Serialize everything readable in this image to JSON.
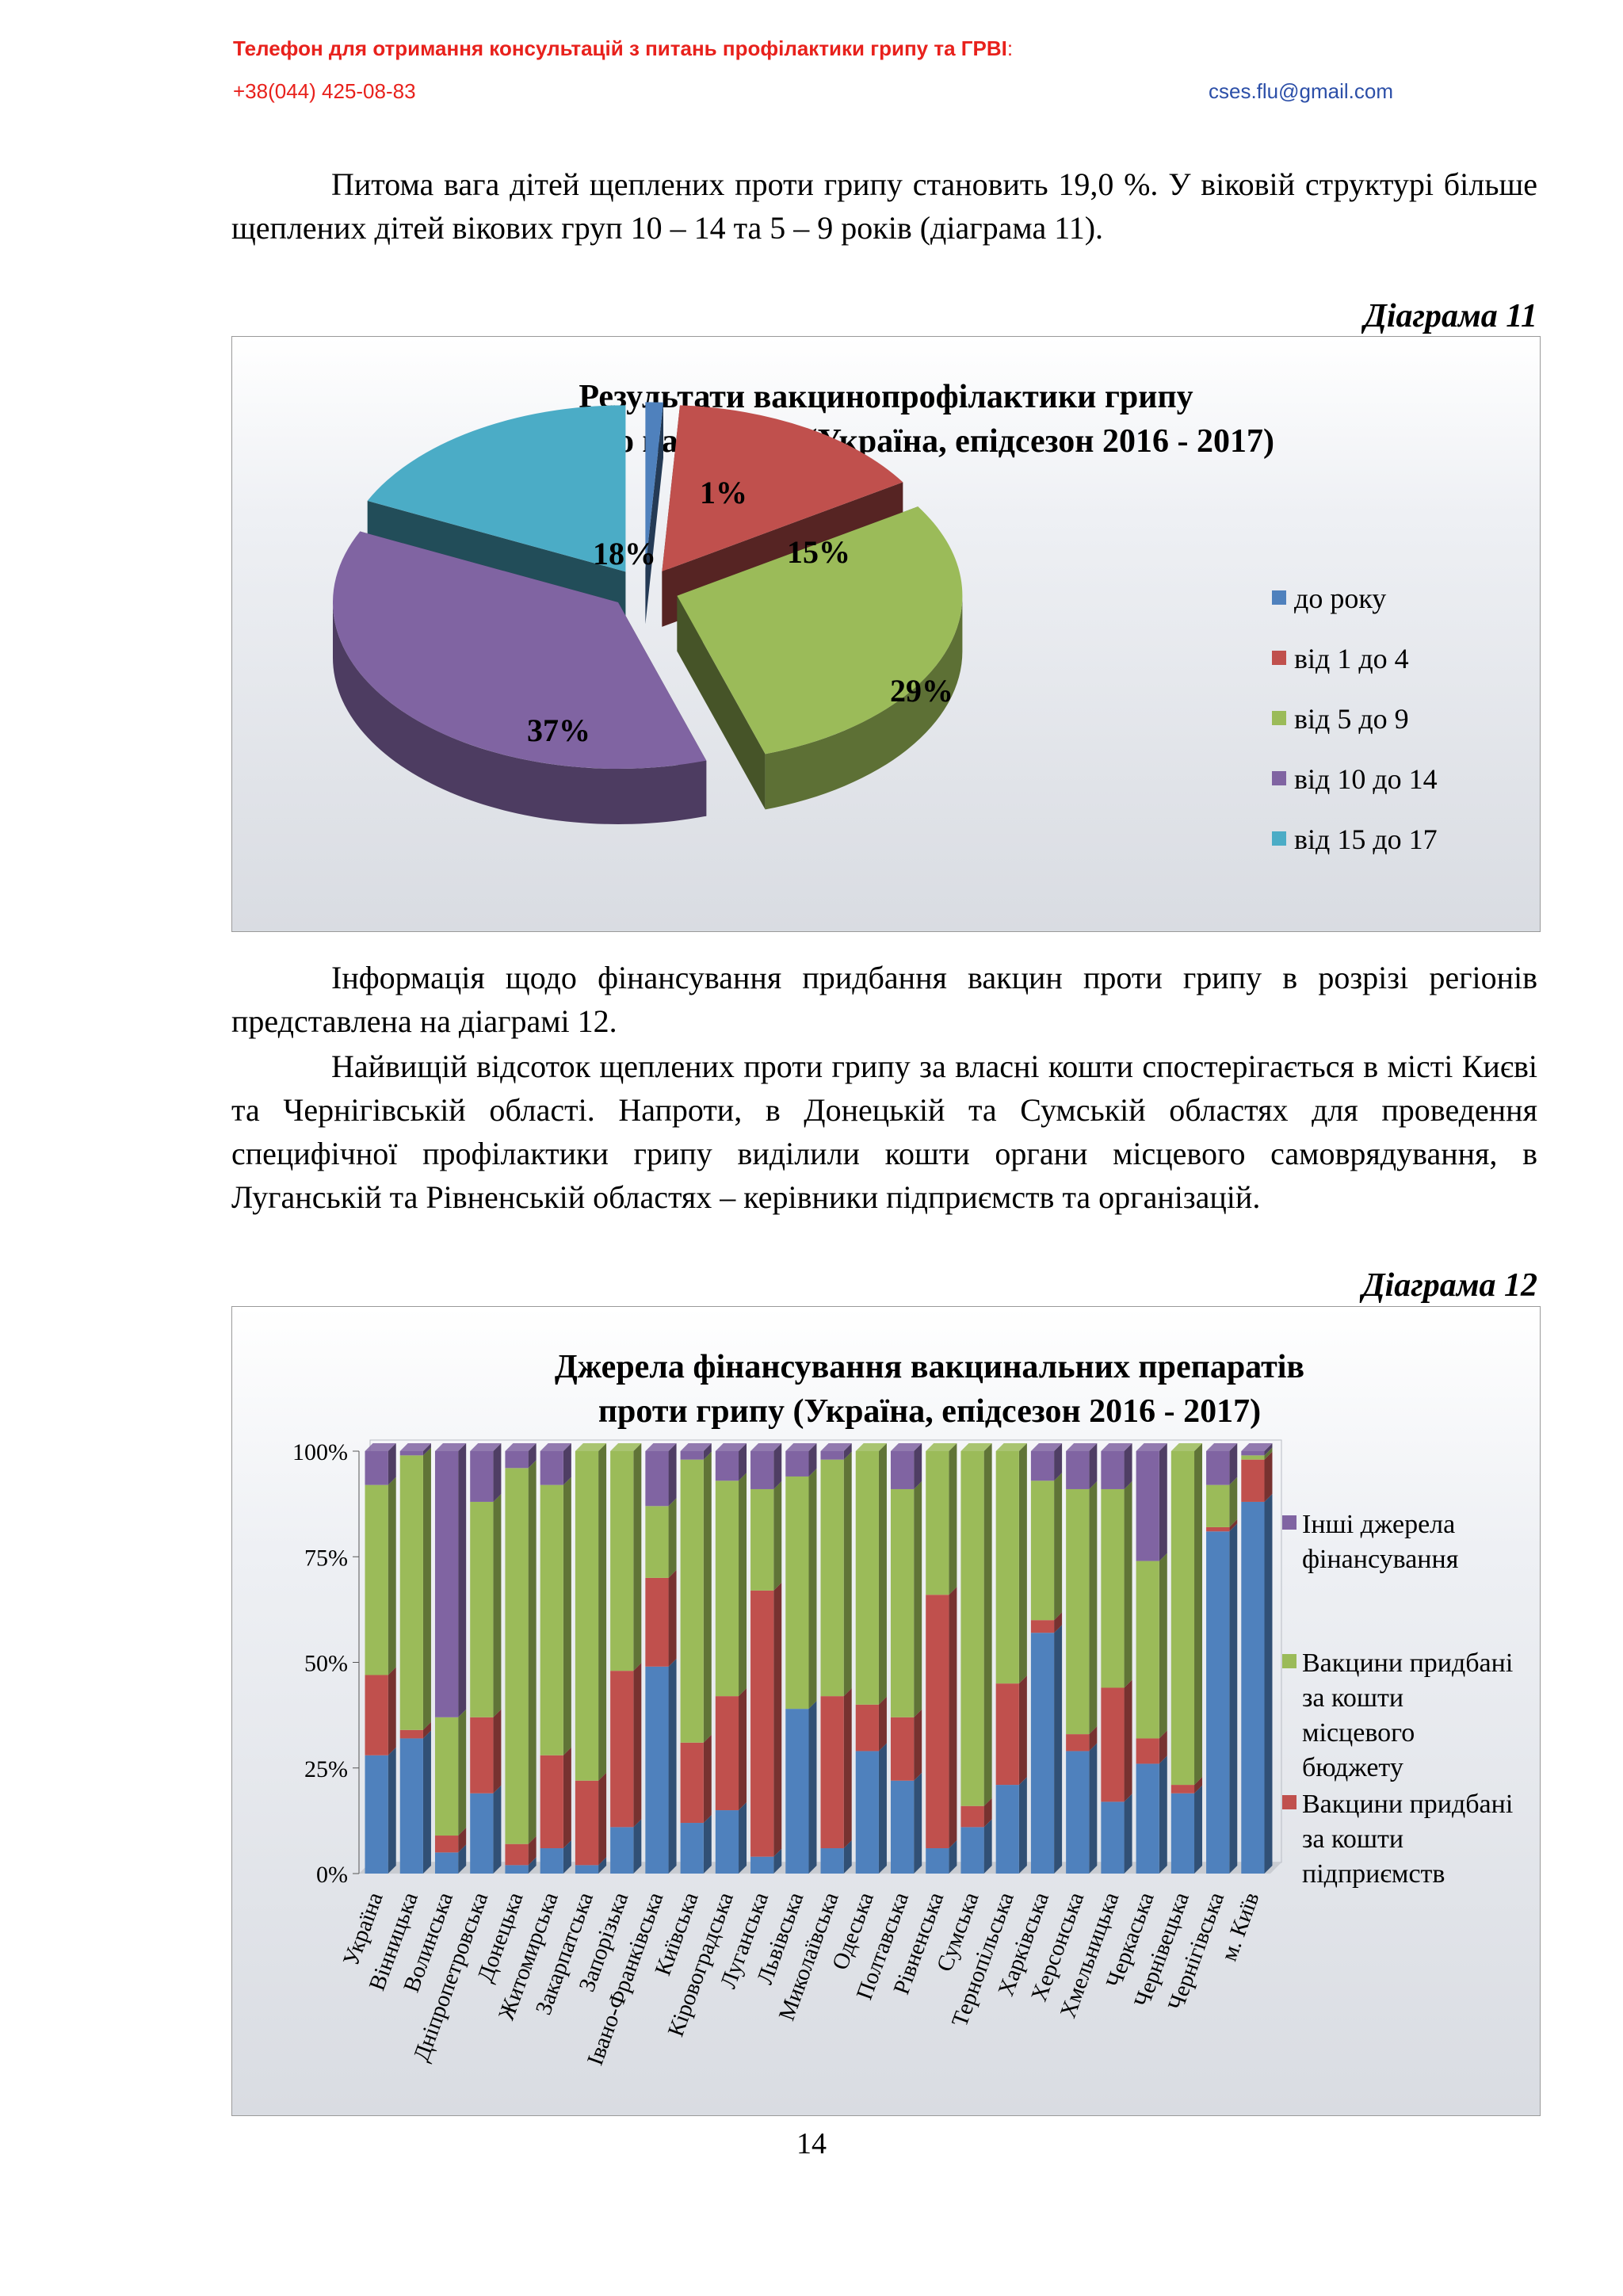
{
  "header": {
    "title": "Телефон для отримання консультацій з питань профілактики грипу та ГРВІ",
    "colon": ":",
    "phone": "+38(044) 425-08-83",
    "email": "cses.flu@gmail.com"
  },
  "text": {
    "para1": "Питома вага дітей щеплених проти грипу становить 19,0 %. У віковій структурі більше щеплених дітей вікових груп 10 – 14 та 5 – 9 років (діаграма 11).",
    "diagram11_label": "Діаграма 11",
    "para2": "Інформація щодо фінансування придбання вакцин проти грипу в розрізі регіонів представлена на діаграмі 12.",
    "para3": "Найвищій відсоток щеплених проти грипу за власні кошти спостерігається в місті Києві та Чернігівській області. Напроти, в Донецькій та Сумській областях для проведення специфічної профілактики грипу виділили кошти органи місцевого самоврядування, в Луганській та Рівненській областях – керівники підприємств та організацій.",
    "diagram12_label": "Діаграма 12",
    "page_number": "14"
  },
  "chart_data": [
    {
      "type": "pie",
      "title": "Результати вакцинопрофілактики грипу дитячого населення (Україна, епідсезон 2016 - 2017)",
      "title_lines": [
        "Результати вакцинопрофілактики грипу",
        "дитячого населення (Україна, епідсезон 2016 - 2017)"
      ],
      "categories": [
        "до року",
        "від 1 до 4",
        "від 5 до 9",
        "від 10 до 14",
        "від 15 до 17"
      ],
      "values": [
        1,
        15,
        29,
        37,
        18
      ],
      "labels": [
        "1%",
        "15%",
        "29%",
        "37%",
        "18%"
      ],
      "colors": [
        "#4f81bd",
        "#c0504d",
        "#9bbb59",
        "#8064a2",
        "#4bacc6"
      ],
      "exploded": true,
      "three_d": true,
      "legend_position": "right"
    },
    {
      "type": "bar",
      "stacked": "percent",
      "title": "Джерела фінансування вакцинальних препаратів проти грипу (Україна, епідсезон  2016 - 2017)",
      "title_lines": [
        "Джерела фінансування вакцинальних препаратів",
        "проти грипу (Україна, епідсезон  2016 - 2017)"
      ],
      "categories": [
        "Україна",
        "Вінницька",
        "Волинська",
        "Дніпропетровська",
        "Донецька",
        "Житомирська",
        "Закарпатська",
        "Запорізька",
        "Івано-Франківська",
        "Київська",
        "Кіровоградська",
        "Луганська",
        "Львівська",
        "Миколаївська",
        "Одеська",
        "Полтавська",
        "Рівненська",
        "Сумська",
        "Тернопільська",
        "Харківська",
        "Херсонська",
        "Хмельницька",
        "Черкаська",
        "Чернівецька",
        "Чернігівська",
        "м. Київ"
      ],
      "y_ticks": [
        "0%",
        "25%",
        "50%",
        "75%",
        "100%"
      ],
      "ylim": [
        0,
        100
      ],
      "series": [
        {
          "name": "",
          "color": "#4f81bd",
          "values": [
            28,
            32,
            5,
            19,
            2,
            6,
            2,
            11,
            49,
            12,
            15,
            4,
            39,
            6,
            29,
            22,
            6,
            11,
            21,
            57,
            29,
            17,
            26,
            19,
            81,
            88
          ]
        },
        {
          "name": "Вакцини придбані за кошти підприємств",
          "color": "#c0504d",
          "values": [
            19,
            2,
            4,
            18,
            5,
            22,
            20,
            37,
            21,
            19,
            27,
            63,
            0,
            36,
            11,
            15,
            60,
            5,
            24,
            3,
            4,
            27,
            6,
            2,
            1,
            10
          ]
        },
        {
          "name": "Вакцини придбані за кошти місцевого бюджету",
          "color": "#9bbb59",
          "values": [
            45,
            65,
            28,
            51,
            89,
            64,
            78,
            52,
            17,
            67,
            51,
            24,
            55,
            56,
            60,
            54,
            34,
            84,
            55,
            33,
            58,
            47,
            42,
            79,
            10,
            1
          ]
        },
        {
          "name": "Інші джерела фінансування",
          "color": "#8064a2",
          "values": [
            8,
            1,
            63,
            12,
            4,
            8,
            0,
            0,
            13,
            2,
            7,
            9,
            6,
            2,
            0,
            9,
            0,
            0,
            0,
            7,
            9,
            9,
            26,
            0,
            8,
            1
          ]
        }
      ],
      "legend": [
        {
          "label": "Інші джерела фінансування",
          "lines": [
            "Інші джерела",
            "фінансування"
          ],
          "color": "#8064a2"
        },
        {
          "label": "Вакцини придбані за кошти місцевого бюджету",
          "lines": [
            "Вакцини придбані",
            "за кошти",
            "місцевого",
            "бюджету"
          ],
          "color": "#9bbb59"
        },
        {
          "label": "Вакцини придбані за кошти підприємств",
          "lines": [
            "Вакцини придбані",
            "за кошти",
            "підприємств"
          ],
          "color": "#c0504d"
        }
      ],
      "legend_position": "right"
    }
  ]
}
